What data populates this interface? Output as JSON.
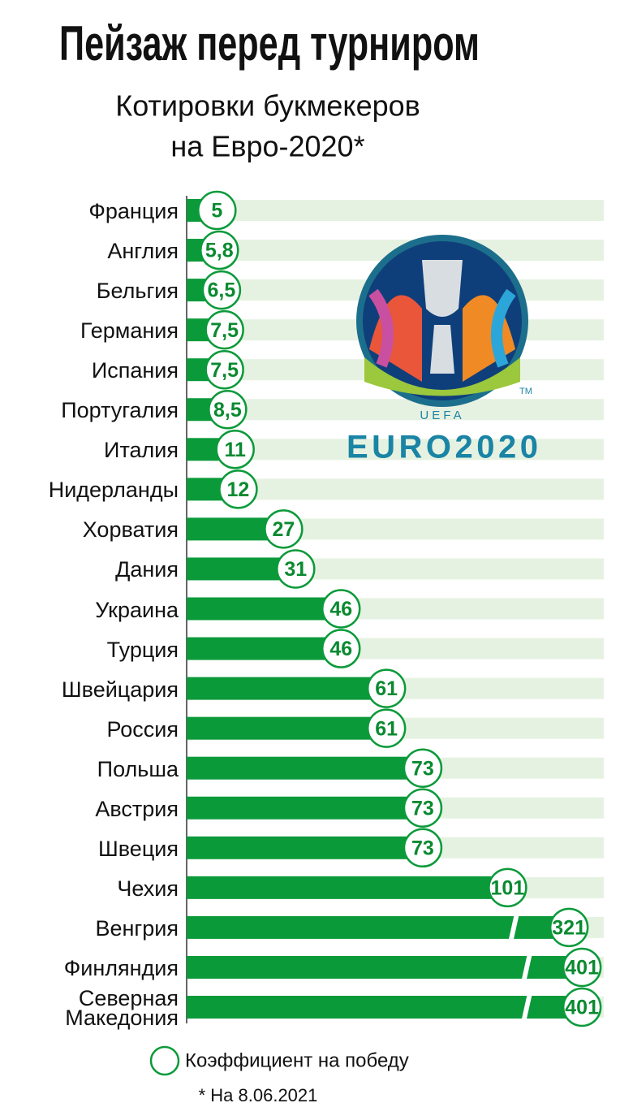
{
  "chart_data": {
    "type": "bar",
    "title": "Пейзаж перед турниром",
    "subtitle": [
      "Котировки букмекеров",
      "на Евро-2020*"
    ],
    "categories": [
      "Франция",
      "Англия",
      "Бельгия",
      "Германия",
      "Испания",
      "Португалия",
      "Италия",
      "Нидерланды",
      "Хорватия",
      "Дания",
      "Украина",
      "Турция",
      "Швейцария",
      "Россия",
      "Польша",
      "Австрия",
      "Швеция",
      "Чехия",
      "Венгрия",
      "Финляндия",
      "Северная Македония"
    ],
    "values": [
      5,
      5.8,
      6.5,
      7.5,
      7.5,
      8.5,
      11,
      12,
      27,
      31,
      46,
      46,
      61,
      61,
      73,
      73,
      73,
      101,
      321,
      401,
      401
    ],
    "value_labels": [
      "5",
      "5,8",
      "6,5",
      "7,5",
      "7,5",
      "8,5",
      "11",
      "12",
      "27",
      "31",
      "46",
      "46",
      "61",
      "61",
      "73",
      "73",
      "73",
      "101",
      "321",
      "401",
      "401"
    ],
    "color": "#0b9a3a",
    "stripe_color": "#e6f2e1",
    "xlim": [
      -5,
      110
    ],
    "axis_break": true,
    "legend_label": "Коэффициент на победу",
    "note": "* На 8.06.2021"
  },
  "logo": {
    "uefa": "UEFA",
    "wordmark": "EURO2020",
    "tm": "TM"
  }
}
